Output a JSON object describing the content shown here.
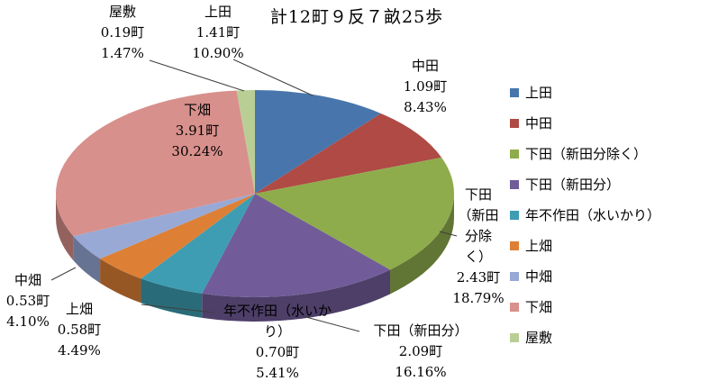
{
  "title": "計12町９反７畝25歩",
  "chart_data": {
    "type": "pie",
    "style": "3d",
    "title": "計12町９反７畝25歩",
    "unit": "町",
    "legend_position": "right",
    "labels": [
      "上田",
      "中田",
      "下田（新田分除く）",
      "下田（新田分）",
      "年不作田（水いかり）",
      "上畑",
      "中畑",
      "下畑",
      "屋敷"
    ],
    "values_cho": [
      1.41,
      1.09,
      2.43,
      2.09,
      0.7,
      0.58,
      0.53,
      3.91,
      0.19
    ],
    "percentages": [
      10.9,
      8.43,
      18.79,
      16.16,
      5.41,
      4.49,
      4.1,
      30.24,
      1.47
    ],
    "colors": [
      "#4876AC",
      "#AF4A45",
      "#8FAC4D",
      "#715C99",
      "#3E9DB2",
      "#DD8036",
      "#98A9D6",
      "#D8908C",
      "#B9CE95"
    ]
  },
  "slice_labels": [
    {
      "id": "yashiki",
      "lines": [
        "屋敷",
        "0.19町",
        "1.47%"
      ]
    },
    {
      "id": "ueda",
      "lines": [
        "上田",
        "1.41町",
        "10.90%"
      ]
    },
    {
      "id": "nakada",
      "lines": [
        "中田",
        "1.09町",
        "8.43%"
      ]
    },
    {
      "id": "shimoda_ex",
      "lines": [
        "下田",
        "（新田",
        "分除",
        "く）",
        "2.43町",
        "18.79%"
      ]
    },
    {
      "id": "shimoda_shin",
      "lines": [
        "下田（新田分）",
        "2.09町",
        "16.16%"
      ]
    },
    {
      "id": "fusakuden",
      "lines": [
        "年不作田（水いか",
        "り）",
        "0.70町",
        "5.41%"
      ]
    },
    {
      "id": "uehata",
      "lines": [
        "上畑",
        "0.58町",
        "4.49%"
      ]
    },
    {
      "id": "nakahata",
      "lines": [
        "中畑",
        "0.53町",
        "4.10%"
      ]
    },
    {
      "id": "shimohata",
      "lines": [
        "下畑",
        "3.91町",
        "30.24%"
      ]
    }
  ],
  "legend": {
    "items": [
      {
        "label": "上田"
      },
      {
        "label": "中田"
      },
      {
        "label": "下田（新田分除く）"
      },
      {
        "label": "下田（新田分）"
      },
      {
        "label": "年不作田（水いかり）"
      },
      {
        "label": "上畑"
      },
      {
        "label": "中畑"
      },
      {
        "label": "下畑"
      },
      {
        "label": "屋敷"
      }
    ]
  }
}
